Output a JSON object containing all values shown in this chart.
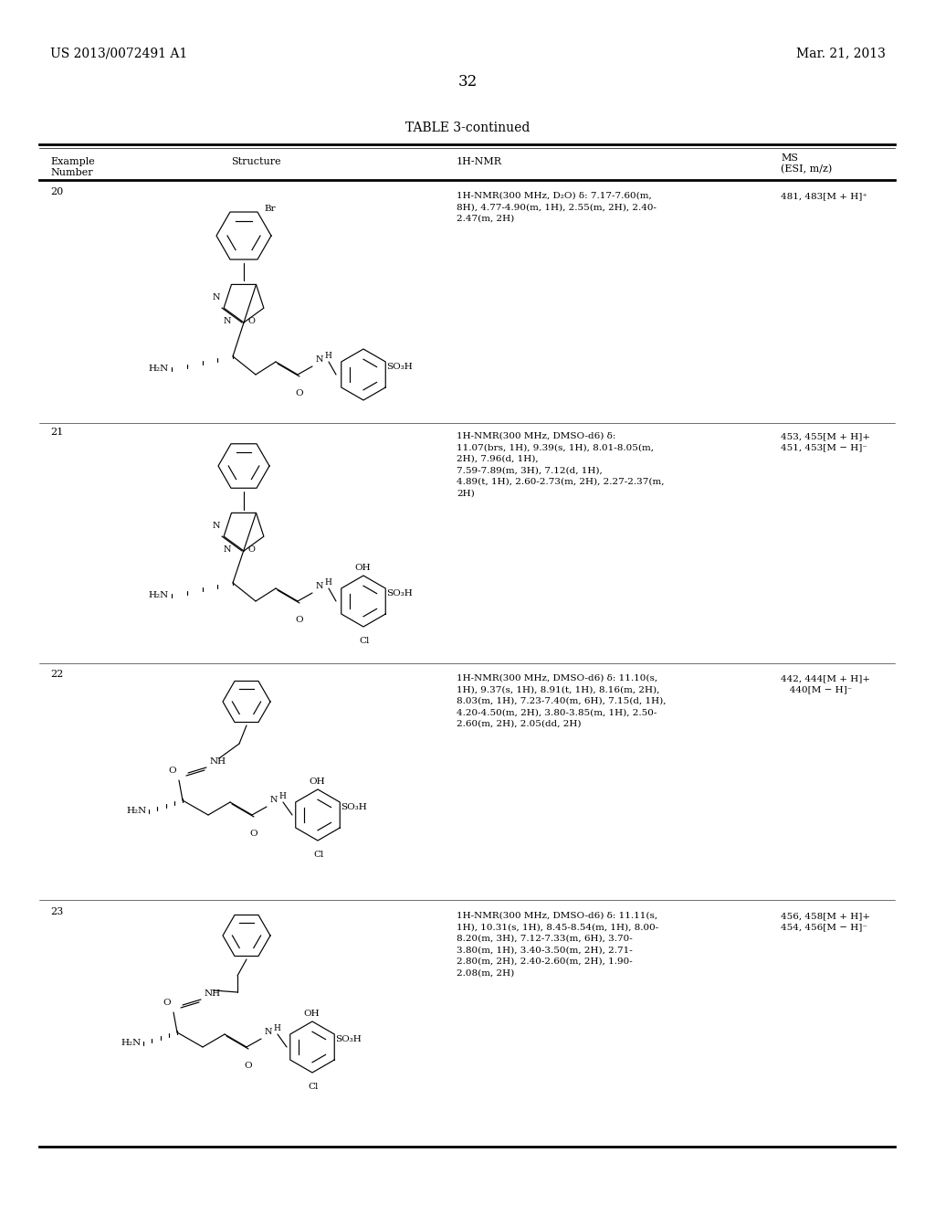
{
  "background_color": "#ffffff",
  "header_left": "US 2013/0072491 A1",
  "header_right": "Mar. 21, 2013",
  "page_number": "32",
  "table_title": "TABLE 3-continued",
  "rows": [
    {
      "example": "20",
      "nmr": "1H-NMR(300 MHz, D₂O) δ: 7.17-7.60(m,\n8H), 4.77-4.90(m, 1H), 2.55(m, 2H), 2.40-\n2.47(m, 2H)",
      "ms": "481, 483[M + H]⁺"
    },
    {
      "example": "21",
      "nmr": "1H-NMR(300 MHz, DMSO-d6) δ:\n11.07(brs, 1H), 9.39(s, 1H), 8.01-8.05(m,\n2H), 7.96(d, 1H),\n7.59-7.89(m, 3H), 7.12(d, 1H),\n4.89(t, 1H), 2.60-2.73(m, 2H), 2.27-2.37(m,\n2H)",
      "ms": "453, 455[M + H]+\n451, 453[M − H]⁻"
    },
    {
      "example": "22",
      "nmr": "1H-NMR(300 MHz, DMSO-d6) δ: 11.10(s,\n1H), 9.37(s, 1H), 8.91(t, 1H), 8.16(m, 2H),\n8.03(m, 1H), 7.23-7.40(m, 6H), 7.15(d, 1H),\n4.20-4.50(m, 2H), 3.80-3.85(m, 1H), 2.50-\n2.60(m, 2H), 2.05(dd, 2H)",
      "ms": "442, 444[M + H]+\n   440[M − H]⁻"
    },
    {
      "example": "23",
      "nmr": "1H-NMR(300 MHz, DMSO-d6) δ: 11.11(s,\n1H), 10.31(s, 1H), 8.45-8.54(m, 1H), 8.00-\n8.20(m, 3H), 7.12-7.33(m, 6H), 3.70-\n3.80(m, 1H), 3.40-3.50(m, 2H), 2.71-\n2.80(m, 2H), 2.40-2.60(m, 2H), 1.90-\n2.08(m, 2H)",
      "ms": "456, 458[M + H]+\n454, 456[M − H]⁻"
    }
  ]
}
